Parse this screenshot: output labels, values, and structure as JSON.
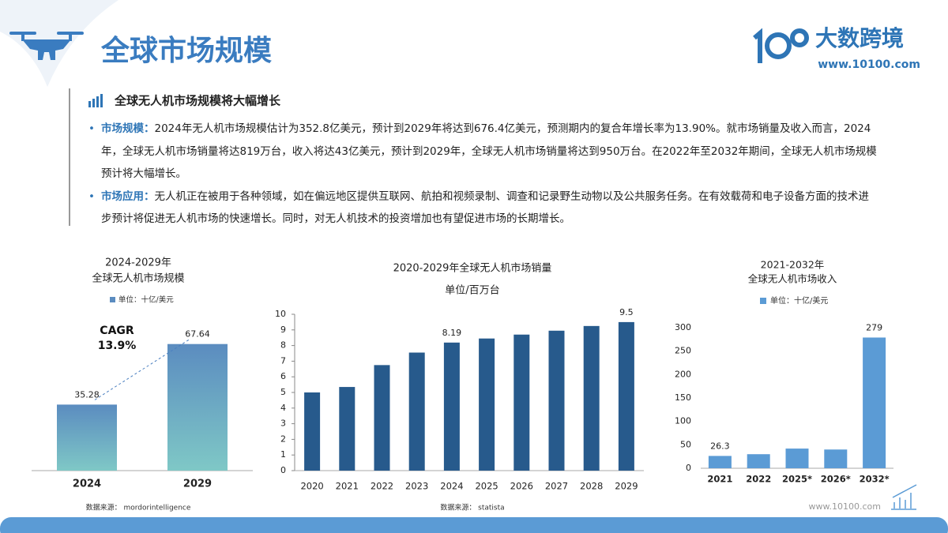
{
  "header": {
    "title": "全球市场规模",
    "logo": "大数跨境",
    "url": "www.10100.com"
  },
  "section": {
    "heading": "全球无人机市场规模将大幅增长",
    "bullets": [
      {
        "label": "市场规模：",
        "text": "2024年无人机市场规模估计为352.8亿美元，预计到2029年将达到676.4亿美元，预测期内的复合年增长率为13.90%。就市场销量及收入而言，2024年，全球无人机市场销量将达819万台，收入将达43亿美元，预计到2029年，全球无人机市场销量将达到950万台。在2022年至2032年期间，全球无人机市场规模预计将大幅增长。"
      },
      {
        "label": "市场应用：",
        "text": "无人机正在被用于各种领域，如在偏远地区提供互联网、航拍和视频录制、调查和记录野生动物以及公共服务任务。在有效载荷和电子设备方面的技术进步预计将促进无人机市场的快速增长。同时，对无人机技术的投资增加也有望促进市场的长期增长。"
      }
    ]
  },
  "footer": {
    "url": "www.10100.com"
  },
  "chart_data": [
    {
      "type": "bar",
      "title": [
        "2024-2029年",
        "全球无人机市场规模"
      ],
      "categories": [
        "2024",
        "2029"
      ],
      "series": [
        {
          "name": "单位：十亿/美元",
          "color": "#5b8cc0",
          "values": [
            35.28,
            67.64
          ]
        }
      ],
      "annotation": [
        "CAGR",
        "13.9%"
      ],
      "source": "数据来源： mordorintelligence"
    },
    {
      "type": "bar",
      "title": "2020-2029年全球无人机市场销量",
      "subtitle": "单位/百万台",
      "categories": [
        "2020",
        "2021",
        "2022",
        "2023",
        "2024",
        "2025",
        "2026",
        "2027",
        "2028",
        "2029"
      ],
      "values": [
        5.0,
        5.35,
        6.75,
        7.55,
        8.19,
        8.45,
        8.7,
        8.95,
        9.25,
        9.5
      ],
      "value_labels": [
        null,
        null,
        null,
        null,
        "8.19",
        null,
        null,
        null,
        null,
        "9.5"
      ],
      "color": "#275a8c",
      "ylim": [
        0,
        10
      ],
      "yticks": [
        0,
        1,
        2,
        3,
        4,
        5,
        6,
        7,
        8,
        9,
        10
      ],
      "source": "数据来源： statista"
    },
    {
      "type": "bar",
      "title": [
        "2021-2032年",
        "全球无人机市场收入"
      ],
      "categories": [
        "2021",
        "2022",
        "2025*",
        "2026*",
        "2032*"
      ],
      "series": [
        {
          "name": "单位：十亿/美元",
          "color": "#5b9bd5",
          "values": [
            26.3,
            30,
            42,
            40,
            279
          ]
        }
      ],
      "value_labels": [
        "26.3",
        null,
        null,
        null,
        "279"
      ],
      "ylim": [
        0,
        300
      ],
      "yticks": [
        0,
        50,
        100,
        150,
        200,
        250,
        300
      ]
    }
  ]
}
